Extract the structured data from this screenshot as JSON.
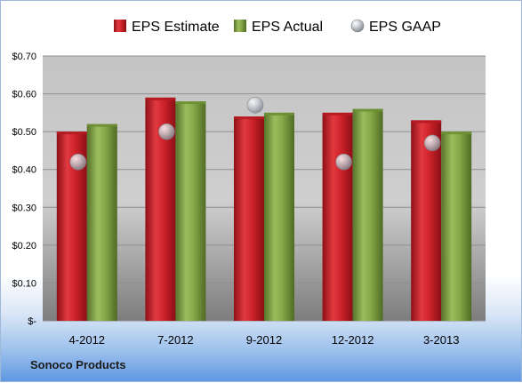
{
  "footer": {
    "company": "Sonoco Products"
  },
  "colors": {
    "estimate": "#c8202a",
    "actual": "#7a9e3a",
    "gaap": "#b9bcc2"
  },
  "chart_data": {
    "type": "bar",
    "categories": [
      "4-2012",
      "7-2012",
      "9-2012",
      "12-2012",
      "3-2013"
    ],
    "series": [
      {
        "name": "EPS Estimate",
        "kind": "bar",
        "values": [
          0.5,
          0.59,
          0.54,
          0.55,
          0.53
        ]
      },
      {
        "name": "EPS Actual",
        "kind": "bar",
        "values": [
          0.52,
          0.58,
          0.55,
          0.56,
          0.5
        ]
      },
      {
        "name": "EPS GAAP",
        "kind": "marker",
        "values": [
          0.42,
          0.5,
          0.57,
          0.42,
          0.47
        ]
      }
    ],
    "yticks": [
      "$-",
      "$0.10",
      "$0.20",
      "$0.30",
      "$0.40",
      "$0.50",
      "$0.60",
      "$0.70"
    ],
    "ylim": [
      0,
      0.7
    ],
    "legend": "top",
    "grid": true
  }
}
